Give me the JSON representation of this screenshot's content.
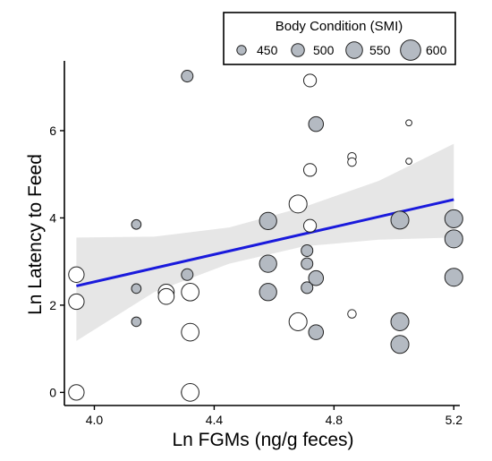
{
  "chart_data": {
    "type": "scatter",
    "title": "",
    "xlabel": "Ln FGMs (ng/g feces)",
    "ylabel": "Ln Latency to Feed",
    "xlim": [
      3.9,
      5.22
    ],
    "ylim": [
      -0.3,
      7.6
    ],
    "xticks": [
      "4.0",
      "4.4",
      "4.8",
      "5.2"
    ],
    "yticks": [
      "0",
      "2",
      "4",
      "6"
    ],
    "grid": false,
    "legend": {
      "title": "Body Condition (SMI)",
      "position": "top-right",
      "entries": [
        {
          "label": "450",
          "size": 450
        },
        {
          "label": "500",
          "size": 500
        },
        {
          "label": "550",
          "size": 550
        },
        {
          "label": "600",
          "size": 600
        }
      ]
    },
    "colors": {
      "filled_point": "#b4bac2",
      "open_point": "#ffffff",
      "point_stroke": "#222222",
      "regression_line": "#1a1adc",
      "confidence_band": "#e6e6e6"
    },
    "regression": {
      "x": [
        3.94,
        5.2
      ],
      "y": [
        2.44,
        4.42
      ],
      "band_x": [
        3.94,
        4.2,
        4.45,
        4.7,
        4.95,
        5.2
      ],
      "band_lower": [
        1.18,
        2.3,
        2.95,
        3.35,
        3.5,
        3.55
      ],
      "band_upper": [
        3.55,
        3.57,
        3.78,
        4.25,
        4.85,
        5.7
      ]
    },
    "points": [
      {
        "x": 3.94,
        "y": 2.7,
        "size": 545,
        "filled": false
      },
      {
        "x": 3.94,
        "y": 2.08,
        "size": 545,
        "filled": false
      },
      {
        "x": 3.94,
        "y": 0.0,
        "size": 545,
        "filled": false
      },
      {
        "x": 4.14,
        "y": 3.85,
        "size": 460,
        "filled": true
      },
      {
        "x": 4.14,
        "y": 2.38,
        "size": 460,
        "filled": true
      },
      {
        "x": 4.14,
        "y": 1.62,
        "size": 460,
        "filled": true
      },
      {
        "x": 4.24,
        "y": 2.3,
        "size": 550,
        "filled": false
      },
      {
        "x": 4.24,
        "y": 2.2,
        "size": 550,
        "filled": false
      },
      {
        "x": 4.31,
        "y": 7.25,
        "size": 490,
        "filled": true
      },
      {
        "x": 4.31,
        "y": 2.7,
        "size": 490,
        "filled": true
      },
      {
        "x": 4.31,
        "y": 0.0,
        "size": 490,
        "filled": true
      },
      {
        "x": 4.32,
        "y": 2.3,
        "size": 575,
        "filled": false
      },
      {
        "x": 4.32,
        "y": 1.38,
        "size": 575,
        "filled": false
      },
      {
        "x": 4.32,
        "y": 0.0,
        "size": 575,
        "filled": false
      },
      {
        "x": 4.58,
        "y": 3.93,
        "size": 570,
        "filled": true
      },
      {
        "x": 4.58,
        "y": 2.95,
        "size": 570,
        "filled": true
      },
      {
        "x": 4.58,
        "y": 2.3,
        "size": 570,
        "filled": true
      },
      {
        "x": 4.68,
        "y": 4.32,
        "size": 580,
        "filled": false
      },
      {
        "x": 4.68,
        "y": 1.62,
        "size": 580,
        "filled": false
      },
      {
        "x": 4.71,
        "y": 3.25,
        "size": 490,
        "filled": true
      },
      {
        "x": 4.71,
        "y": 2.95,
        "size": 490,
        "filled": true
      },
      {
        "x": 4.71,
        "y": 2.4,
        "size": 490,
        "filled": true
      },
      {
        "x": 4.72,
        "y": 7.15,
        "size": 505,
        "filled": false
      },
      {
        "x": 4.72,
        "y": 5.1,
        "size": 505,
        "filled": false
      },
      {
        "x": 4.72,
        "y": 3.82,
        "size": 505,
        "filled": false
      },
      {
        "x": 4.74,
        "y": 6.15,
        "size": 535,
        "filled": true
      },
      {
        "x": 4.74,
        "y": 2.62,
        "size": 535,
        "filled": true
      },
      {
        "x": 4.74,
        "y": 1.38,
        "size": 535,
        "filled": true
      },
      {
        "x": 4.86,
        "y": 5.4,
        "size": 445,
        "filled": false
      },
      {
        "x": 4.86,
        "y": 5.28,
        "size": 445,
        "filled": false
      },
      {
        "x": 4.86,
        "y": 1.8,
        "size": 445,
        "filled": false
      },
      {
        "x": 5.02,
        "y": 3.95,
        "size": 580,
        "filled": true
      },
      {
        "x": 5.02,
        "y": 1.62,
        "size": 580,
        "filled": true
      },
      {
        "x": 5.02,
        "y": 1.1,
        "size": 580,
        "filled": true
      },
      {
        "x": 5.05,
        "y": 6.18,
        "size": 410,
        "filled": false
      },
      {
        "x": 5.05,
        "y": 5.3,
        "size": 410,
        "filled": false
      },
      {
        "x": 5.2,
        "y": 3.98,
        "size": 580,
        "filled": true
      },
      {
        "x": 5.2,
        "y": 3.52,
        "size": 580,
        "filled": true
      },
      {
        "x": 5.2,
        "y": 2.64,
        "size": 580,
        "filled": true
      }
    ]
  }
}
